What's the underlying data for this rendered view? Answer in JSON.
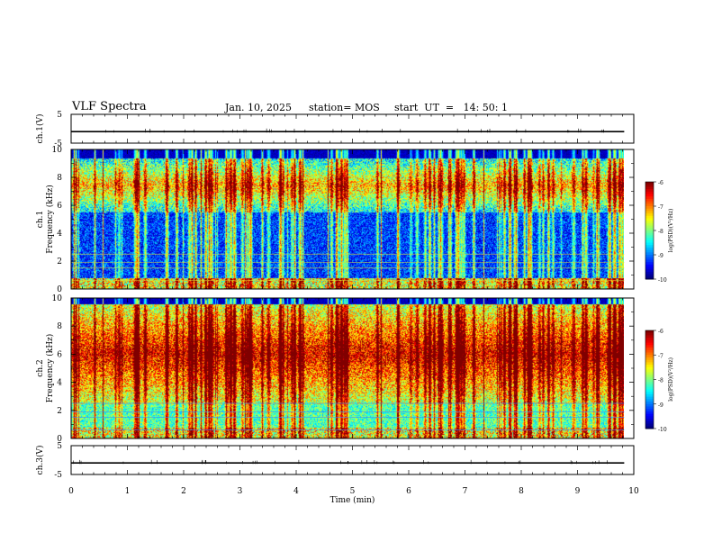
{
  "header": {
    "title": "VLF Spectra",
    "date": "Jan. 10, 2025",
    "station": "station= MOS",
    "start": "start  UT  =   14: 50: 1"
  },
  "chart_data": {
    "type": "heatmap",
    "xlabel": "Time (min)",
    "xlim": [
      0,
      10
    ],
    "x_ticks": [
      "0",
      "1",
      "2",
      "3",
      "4",
      "5",
      "6",
      "7",
      "8",
      "9",
      "10"
    ],
    "data_end_min": 9.83,
    "panels": [
      {
        "id": "ch1v",
        "ylabel": "ch.1(V)",
        "ylim": [
          -5,
          5
        ],
        "y_ticks": [
          "5",
          "-5"
        ],
        "trace_level": -1
      },
      {
        "id": "ch1",
        "ylabel": [
          "ch.1",
          "Frequency (kHz)"
        ],
        "ylim": [
          0,
          10
        ],
        "y_ticks": [
          "0",
          "2",
          "4",
          "6",
          "8",
          "10"
        ],
        "colorbar": {
          "label": "log(PSD)(V²/Hz)",
          "range": [
            -10,
            -6
          ],
          "ticks": [
            "-6",
            "-7",
            "-8",
            "-9",
            "-10"
          ]
        },
        "description_bands": {
          "low_hum_kHz": [
            0,
            0.8
          ],
          "quiet_kHz": [
            0.8,
            5.5
          ],
          "active_kHz": [
            5.5,
            9.4
          ],
          "cutoff_kHz": 9.4
        }
      },
      {
        "id": "ch2",
        "ylabel": [
          "ch.2",
          "Frequency (kHz)"
        ],
        "ylim": [
          0,
          10
        ],
        "y_ticks": [
          "0",
          "2",
          "4",
          "6",
          "8",
          "10"
        ],
        "colorbar": {
          "label": "log(PSD)(V²/Hz)",
          "range": [
            -10,
            -6
          ],
          "ticks": [
            "-6",
            "-7",
            "-8",
            "-9",
            "-10"
          ]
        },
        "description_bands": {
          "low_hum_kHz": [
            0,
            0.8
          ],
          "quiet_kHz": [
            0.8,
            2.5
          ],
          "active_kHz": [
            2.5,
            9.6
          ],
          "cutoff_kHz": 9.6
        }
      },
      {
        "id": "ch3v",
        "ylabel": "ch.3(V)",
        "ylim": [
          -5,
          5
        ],
        "y_ticks": [
          "5",
          "-5"
        ],
        "trace_level": -1
      }
    ]
  }
}
